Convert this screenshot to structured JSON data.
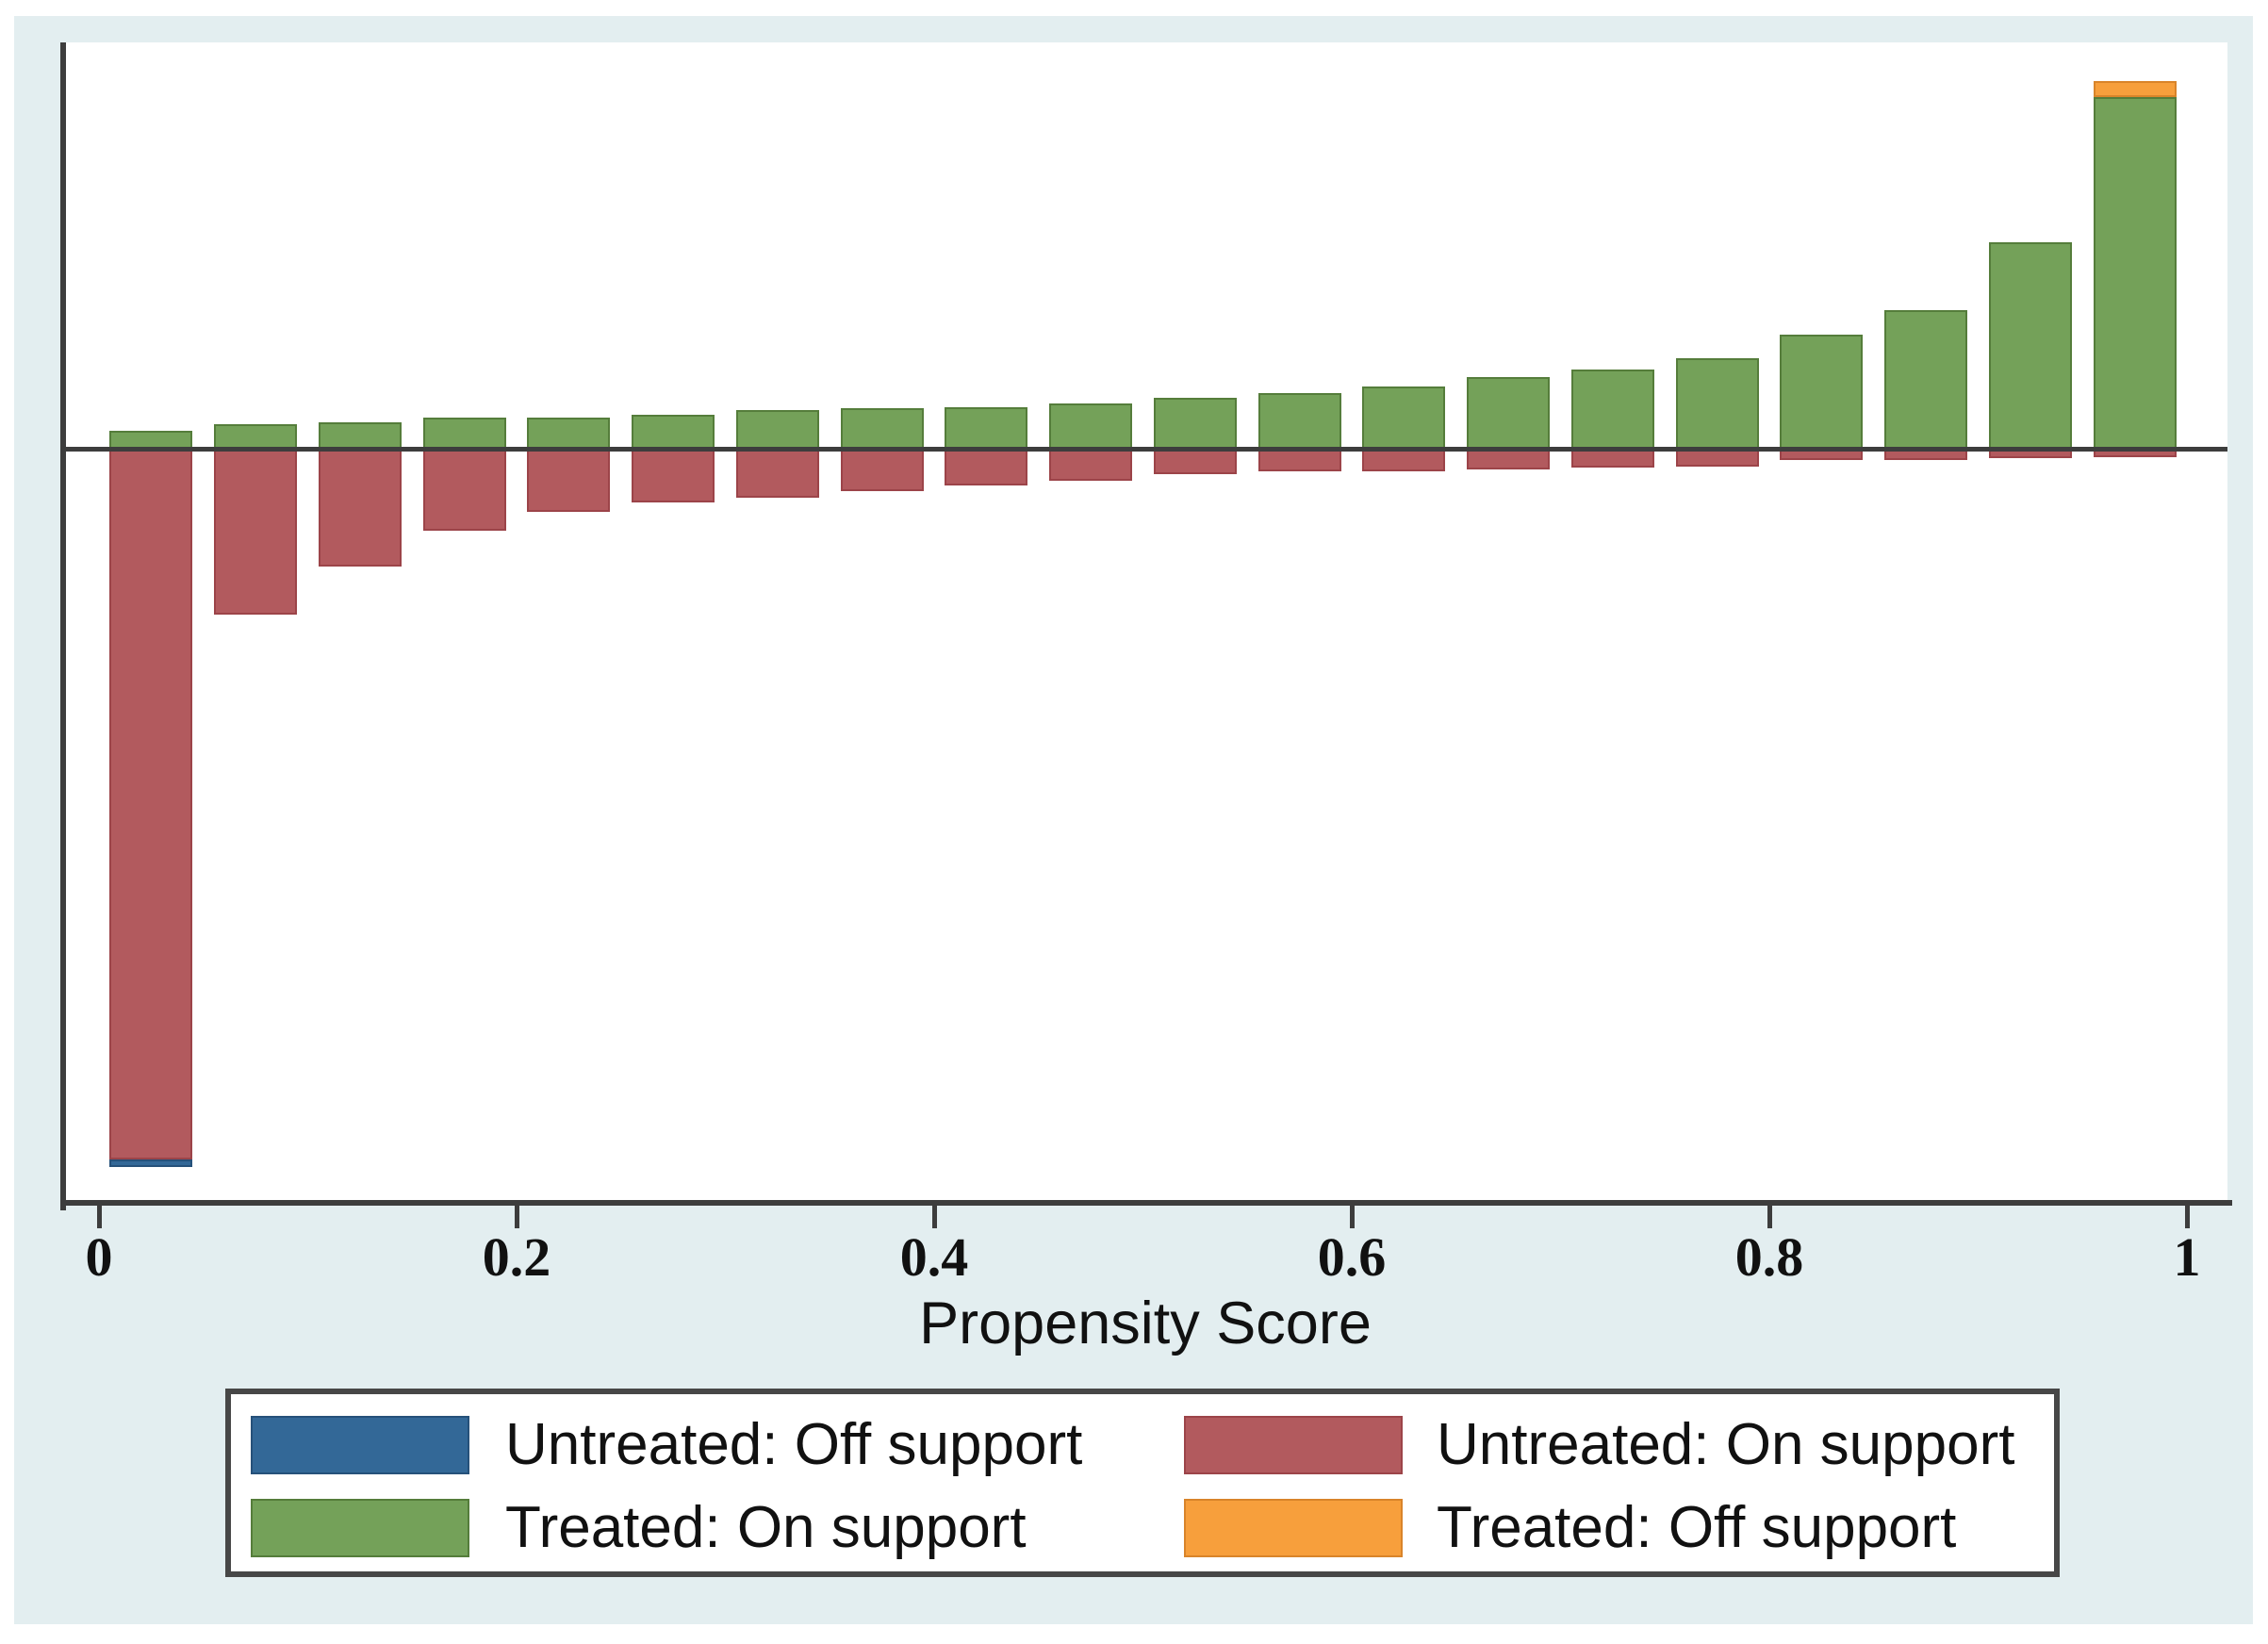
{
  "figure": {
    "xlabel": "Propensity Score",
    "x_tick_labels": [
      "0",
      "0.2",
      "0.4",
      "0.6",
      "0.8",
      "1"
    ],
    "x_tick_values": [
      0,
      0.2,
      0.4,
      0.6,
      0.8,
      1
    ]
  },
  "colors": {
    "background_panel": "#e3eef0",
    "plot_background": "#ffffff",
    "axis": "#3d3d3d",
    "text": "#111111",
    "treated_on_fill": "#74a159",
    "treated_on_edge": "#557d3b",
    "treated_off_fill": "#f79f3c",
    "treated_off_edge": "#d9842a",
    "untreated_on_fill": "#b25a5e",
    "untreated_on_edge": "#9c4449",
    "untreated_off_fill": "#336897",
    "untreated_off_edge": "#26517a",
    "legend_border": "#474747"
  },
  "legend": {
    "items": [
      {
        "key": "untreated_off",
        "label": "Untreated: Off support",
        "row": 0,
        "col": 0
      },
      {
        "key": "untreated_on",
        "label": "Untreated: On support",
        "row": 0,
        "col": 1
      },
      {
        "key": "treated_on",
        "label": "Treated: On support",
        "row": 1,
        "col": 0
      },
      {
        "key": "treated_off",
        "label": "Treated: Off support",
        "row": 1,
        "col": 1
      }
    ]
  },
  "chart_data": {
    "type": "bar",
    "subtype": "mirrored-propensity-score-histogram",
    "title": "",
    "xlabel": "Propensity Score",
    "ylabel": "",
    "xlim": [
      0,
      1
    ],
    "ylim": [
      -0.49,
      0.26
    ],
    "y_axis_tick_labels": "none (unlabeled y axis; values are fraction of group per bin)",
    "grid": false,
    "legend_position": "bottom",
    "bin_width": 0.05,
    "bin_centers": [
      0.025,
      0.075,
      0.125,
      0.175,
      0.225,
      0.275,
      0.325,
      0.375,
      0.425,
      0.475,
      0.525,
      0.575,
      0.625,
      0.675,
      0.725,
      0.775,
      0.825,
      0.875,
      0.925,
      0.975
    ],
    "x_ticks": [
      0,
      0.2,
      0.4,
      0.6,
      0.8,
      1
    ],
    "series": [
      {
        "name": "Treated: On support",
        "direction": "up",
        "color": "#74a159",
        "values": [
          0.012,
          0.016,
          0.017,
          0.02,
          0.02,
          0.022,
          0.025,
          0.026,
          0.027,
          0.029,
          0.033,
          0.036,
          0.04,
          0.046,
          0.051,
          0.058,
          0.073,
          0.089,
          0.132,
          0.225
        ]
      },
      {
        "name": "Treated: Off support",
        "direction": "up",
        "stack_on": "Treated: On support",
        "color": "#f79f3c",
        "values": [
          0,
          0,
          0,
          0,
          0,
          0,
          0,
          0,
          0,
          0,
          0,
          0,
          0,
          0,
          0,
          0,
          0,
          0,
          0,
          0.01
        ]
      },
      {
        "name": "Untreated: On support",
        "direction": "down",
        "color": "#b25a5e",
        "values": [
          0.454,
          0.106,
          0.075,
          0.052,
          0.04,
          0.034,
          0.031,
          0.027,
          0.023,
          0.02,
          0.016,
          0.014,
          0.014,
          0.013,
          0.012,
          0.011,
          0.007,
          0.007,
          0.006,
          0.005
        ]
      },
      {
        "name": "Untreated: Off support",
        "direction": "down",
        "stack_on": "Untreated: On support",
        "color": "#336897",
        "values": [
          0.005,
          0,
          0,
          0,
          0,
          0,
          0,
          0,
          0,
          0,
          0,
          0,
          0,
          0,
          0,
          0,
          0,
          0,
          0,
          0
        ]
      }
    ]
  }
}
